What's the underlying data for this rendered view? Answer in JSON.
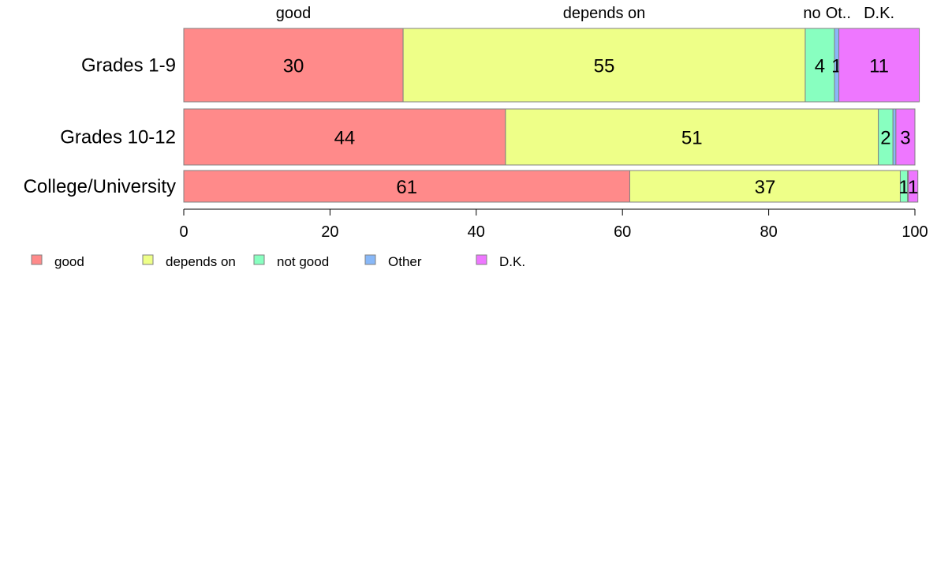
{
  "chart_data": {
    "type": "bar",
    "orientation": "horizontal",
    "stacked": true,
    "categories": [
      "Grades 1-9",
      "Grades 10-12",
      "College/University"
    ],
    "series": [
      {
        "name": "good",
        "values": [
          30,
          44,
          61
        ],
        "labels": [
          "30",
          "44",
          "61"
        ]
      },
      {
        "name": "depends on",
        "values": [
          55,
          51,
          37
        ],
        "labels": [
          "55",
          "51",
          "37"
        ]
      },
      {
        "name": "not good",
        "values": [
          4,
          2,
          1
        ],
        "labels": [
          "4",
          "2",
          "1"
        ]
      },
      {
        "name": "Other",
        "values": [
          0.6,
          0.4,
          0.1
        ],
        "labels": [
          "1",
          "",
          ""
        ]
      },
      {
        "name": "D.K.",
        "values": [
          11,
          2.6,
          1.3
        ],
        "labels": [
          "11",
          "3",
          "1"
        ]
      }
    ],
    "top_labels": [
      "good",
      "depends on",
      "no",
      "Ot..",
      "D.K."
    ],
    "xlim": [
      0,
      100
    ],
    "xticks": [
      "0",
      "20",
      "40",
      "60",
      "80",
      "100"
    ],
    "grid": false,
    "legend_position": "bottom-left",
    "colors": [
      "#ff8a8a",
      "#eeff88",
      "#88ffc0",
      "#88b8f8",
      "#ee77ff"
    ]
  }
}
